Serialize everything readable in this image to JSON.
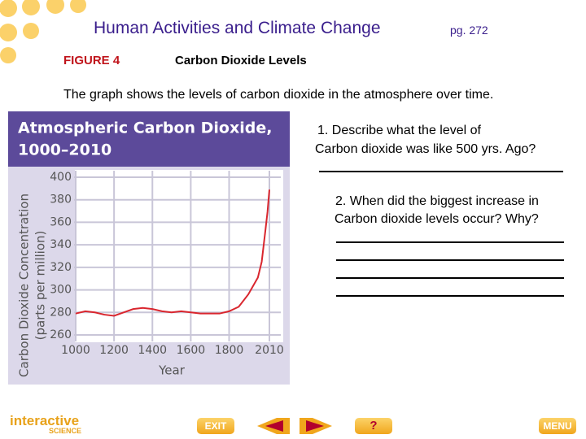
{
  "slide": {
    "title": "Human Activities and Climate Change",
    "page": "pg. 272",
    "figure": "FIGURE 4",
    "figure_title": "Carbon Dioxide Levels",
    "caption": "The graph shows the levels of carbon dioxide in the atmosphere over time.",
    "question_1": [
      "1.   Describe what the level of",
      "Carbon dioxide was like 500 yrs. Ago?"
    ],
    "question_2": [
      "2. When did the biggest increase in",
      "Carbon dioxide levels occur? Why?"
    ],
    "logo": [
      "interactive",
      "SCIENCE"
    ],
    "buttons": [
      "EXIT",
      "?",
      "MENU"
    ]
  },
  "chart_data": {
    "type": "line",
    "title": "Atmospheric Carbon Dioxide,",
    "subtitle": "1000–2010",
    "y_label": [
      "Carbon Dioxide Concentration",
      "(parts per million)"
    ],
    "x_label": "Year",
    "x": [
      1000,
      1050,
      1100,
      1150,
      1200,
      1250,
      1300,
      1350,
      1400,
      1450,
      1500,
      1550,
      1600,
      1650,
      1700,
      1750,
      1800,
      1850,
      1900,
      1950,
      1970,
      1990,
      2000,
      2010
    ],
    "series": [
      {
        "color": "#d9262e",
        "values": [
          279,
          281,
          280,
          278,
          277,
          280,
          283,
          284,
          283,
          281,
          280,
          281,
          280,
          279,
          279,
          279,
          281,
          285,
          296,
          311,
          325,
          354,
          369,
          389
        ]
      }
    ],
    "xlim": [
      1000,
      2010
    ],
    "xticks": [
      1000,
      1200,
      1400,
      1600,
      1800,
      2010
    ],
    "ylim": [
      260,
      400
    ],
    "yticks": [
      260,
      280,
      300,
      320,
      340,
      360,
      380,
      400
    ],
    "grid": true
  }
}
